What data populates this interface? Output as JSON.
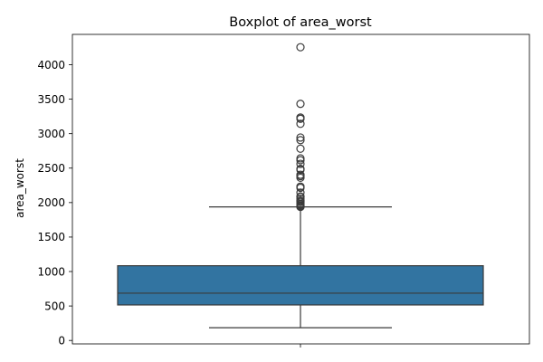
{
  "chart_data": {
    "type": "boxplot",
    "title": "Boxplot of area_worst",
    "xlabel": "",
    "ylabel": "area_worst",
    "ylim": [
      -50,
      4440
    ],
    "y_ticks": [
      0,
      500,
      1000,
      1500,
      2000,
      2500,
      3000,
      3500,
      4000
    ],
    "grid": false,
    "box": {
      "whisker_low": 185,
      "q1": 515,
      "median": 686,
      "q3": 1084,
      "whisker_high": 1937
    },
    "outliers": [
      4254,
      3432,
      3234,
      3216,
      3143,
      2944,
      2906,
      2782,
      2642,
      2615,
      2562,
      2489,
      2477,
      2403,
      2384,
      2360,
      2232,
      2215,
      2145,
      2089,
      2081,
      2053,
      2027,
      2022,
      2010,
      1986,
      1972,
      1955,
      1946,
      1938
    ],
    "colors": {
      "box_fill": "#3274a1",
      "line": "#3a3a3a"
    }
  }
}
